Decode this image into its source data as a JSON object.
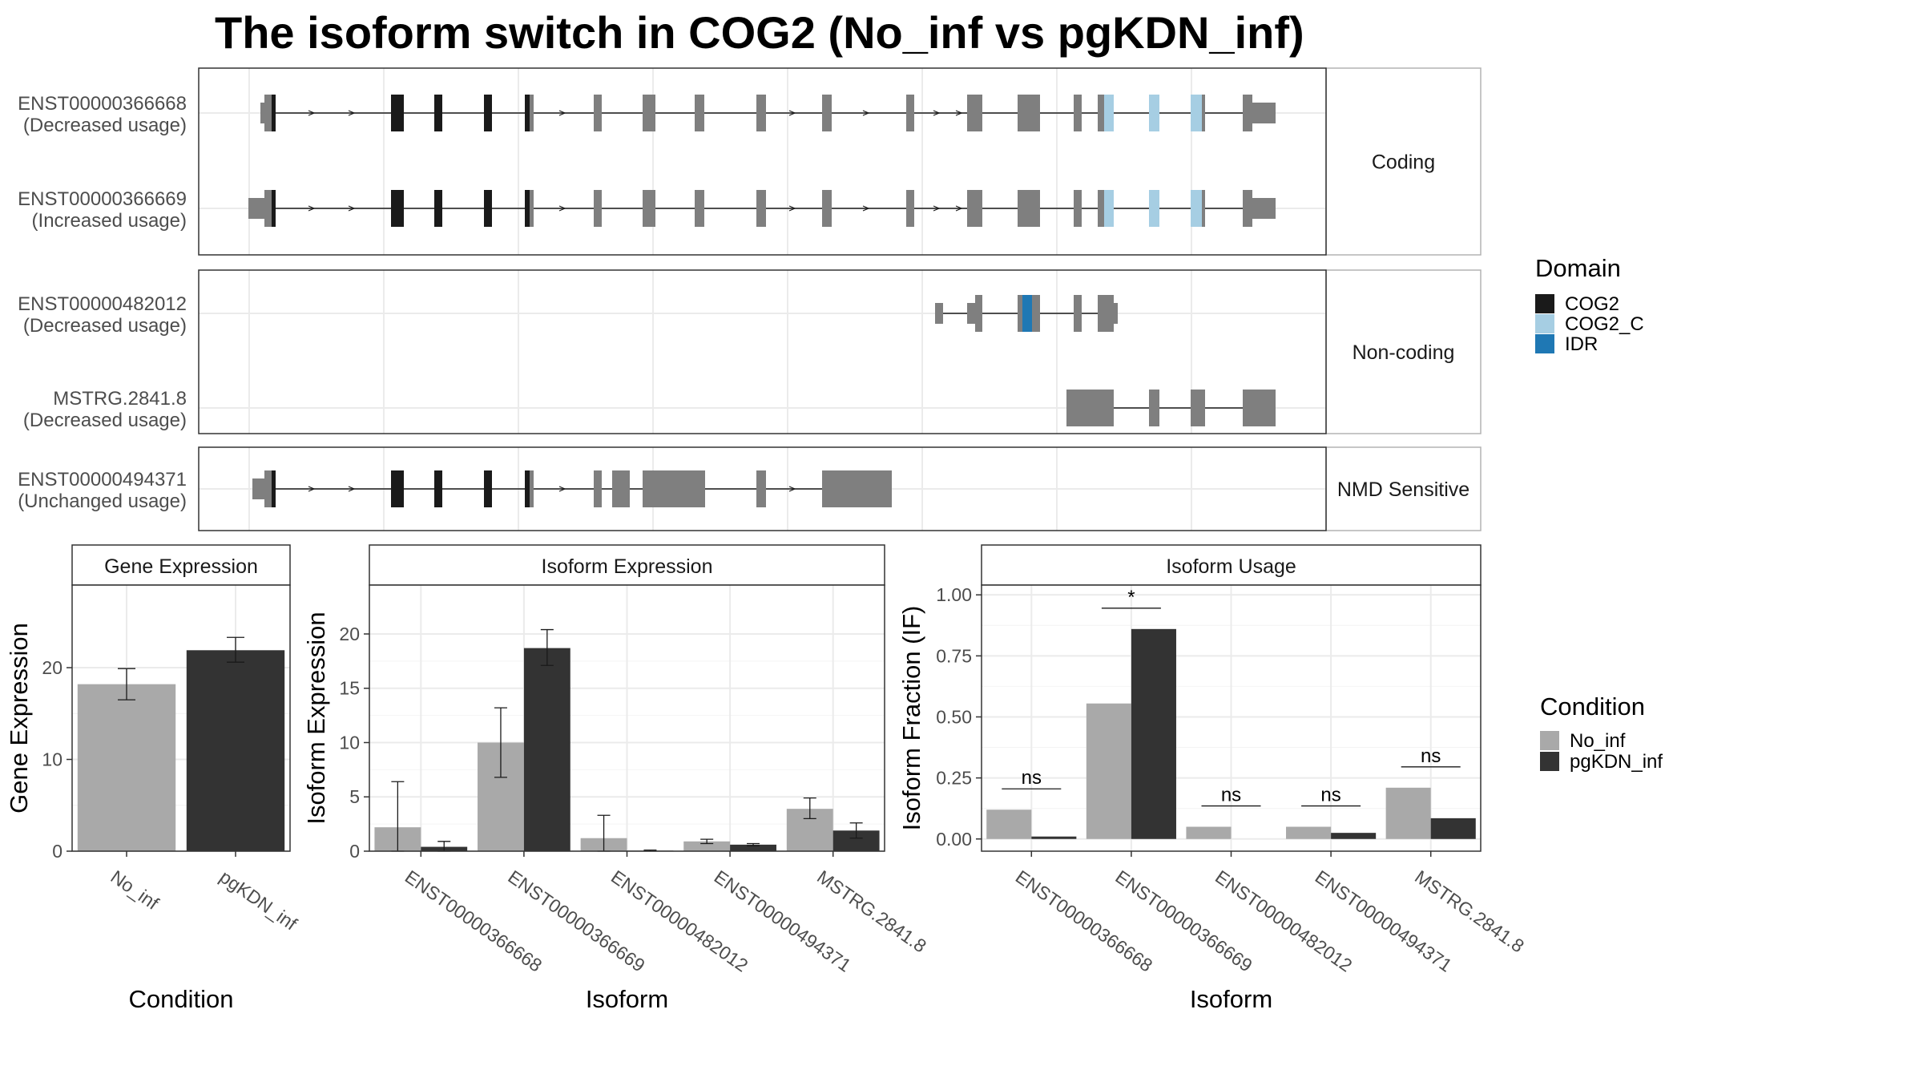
{
  "title": "The isoform switch in COG2 (No_inf vs pgKDN_inf)",
  "colors": {
    "cog2": "#1a1a1a",
    "cog2_c": "#a6cee3",
    "idr": "#1f78b4",
    "exon": "#7f7f7f",
    "no_inf": "#a9a9a9",
    "pgkdn_inf": "#333333"
  },
  "transcript_panels": [
    {
      "strip": "Coding",
      "transcripts": [
        {
          "id": "ENST00000366668",
          "usage": "(Decreased usage)"
        },
        {
          "id": "ENST00000366669",
          "usage": "(Increased usage)"
        }
      ]
    },
    {
      "strip": "Non-coding",
      "transcripts": [
        {
          "id": "ENST00000482012",
          "usage": "(Decreased usage)"
        },
        {
          "id": "MSTRG.2841.8",
          "usage": "(Decreased usage)"
        }
      ]
    },
    {
      "strip": "NMD Sensitive",
      "transcripts": [
        {
          "id": "ENST00000494371",
          "usage": "(Unchanged usage)"
        }
      ]
    }
  ],
  "domain_legend": {
    "title": "Domain",
    "items": [
      {
        "label": "COG2",
        "color": "#1a1a1a"
      },
      {
        "label": "COG2_C",
        "color": "#a6cee3"
      },
      {
        "label": "IDR",
        "color": "#1f78b4"
      }
    ]
  },
  "condition_legend": {
    "title": "Condition",
    "items": [
      {
        "label": "No_inf",
        "color": "#a9a9a9"
      },
      {
        "label": "pgKDN_inf",
        "color": "#333333"
      }
    ]
  },
  "chart_data": [
    {
      "type": "bar",
      "title": "Gene Expression",
      "xlabel": "Condition",
      "ylabel": "Gene Expression",
      "categories": [
        "No_inf",
        "pgKDN_inf"
      ],
      "values": [
        18.2,
        21.9
      ],
      "errors": [
        [
          16.5,
          19.9
        ],
        [
          20.6,
          23.3
        ]
      ],
      "ylim": [
        0,
        29
      ],
      "yticks": [
        0,
        10,
        20
      ],
      "grid": true
    },
    {
      "type": "bar",
      "title": "Isoform Expression",
      "xlabel": "Isoform",
      "ylabel": "Isoform Expression",
      "categories": [
        "ENST00000366668",
        "ENST00000366669",
        "ENST00000482012",
        "ENST00000494371",
        "MSTRG.2841.8"
      ],
      "series": [
        {
          "name": "No_inf",
          "values": [
            2.2,
            10.0,
            1.2,
            0.9,
            3.9
          ],
          "errors": [
            [
              0.0,
              6.4
            ],
            [
              6.8,
              13.2
            ],
            [
              0.0,
              3.3
            ],
            [
              0.7,
              1.1
            ],
            [
              3.0,
              4.9
            ]
          ]
        },
        {
          "name": "pgKDN_inf",
          "values": [
            0.4,
            18.7,
            0.05,
            0.6,
            1.9
          ],
          "errors": [
            [
              0.0,
              0.9
            ],
            [
              17.1,
              20.4
            ],
            [
              0.0,
              0.1
            ],
            [
              0.5,
              0.7
            ],
            [
              1.2,
              2.6
            ]
          ]
        }
      ],
      "ylim": [
        0,
        24.5
      ],
      "yticks": [
        0,
        5,
        10,
        15,
        20
      ],
      "grid": true
    },
    {
      "type": "bar",
      "title": "Isoform Usage",
      "xlabel": "Isoform",
      "ylabel": "Isoform Fraction (IF)",
      "categories": [
        "ENST00000366668",
        "ENST00000366669",
        "ENST00000482012",
        "ENST00000494371",
        "MSTRG.2841.8"
      ],
      "series": [
        {
          "name": "No_inf",
          "values": [
            0.12,
            0.555,
            0.05,
            0.05,
            0.21
          ]
        },
        {
          "name": "pgKDN_inf",
          "values": [
            0.01,
            0.86,
            0.0,
            0.025,
            0.085
          ]
        }
      ],
      "significance": [
        "ns",
        "*",
        "ns",
        "ns",
        "ns"
      ],
      "ylim": [
        -0.05,
        1.04
      ],
      "yticks": [
        0.0,
        0.25,
        0.5,
        0.75,
        1.0
      ],
      "ytick_labels": [
        "0.00",
        "0.25",
        "0.50",
        "0.75",
        "1.00"
      ],
      "grid": true
    }
  ]
}
